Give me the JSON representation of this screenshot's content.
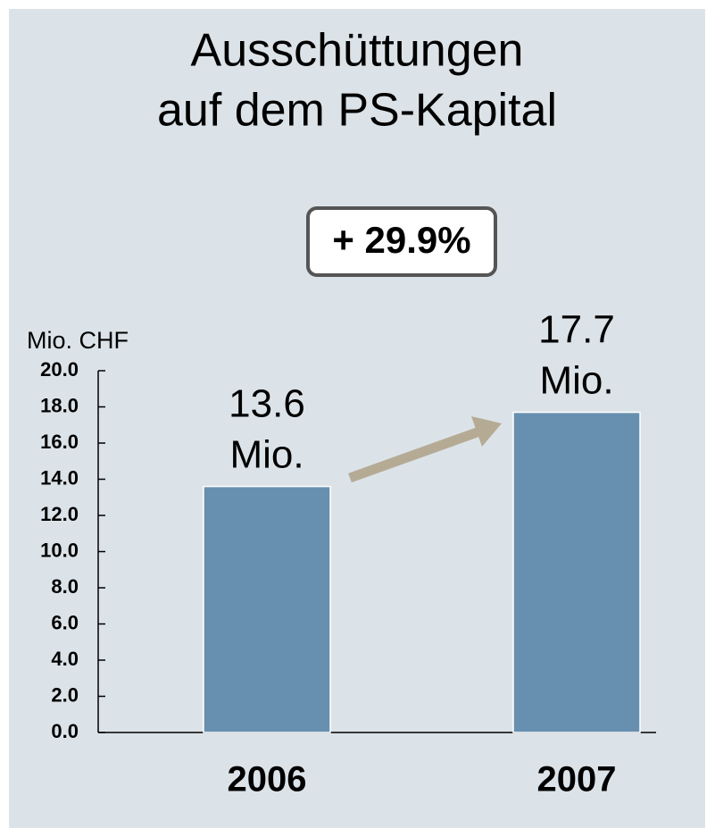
{
  "chart_data": {
    "type": "bar",
    "title": [
      "Ausschüttungen",
      "auf dem PS-Kapital"
    ],
    "annotation": "+ 29.9%",
    "y_label": "Mio. CHF",
    "categories": [
      "2006",
      "2007"
    ],
    "values": [
      13.6,
      17.7
    ],
    "value_labels": [
      "13.6 Mio.",
      "17.7 Mio."
    ],
    "color": "#678fb0",
    "ylim": [
      0,
      20
    ],
    "yticks": [
      {
        "value": 0,
        "label": "0.0"
      },
      {
        "value": 2,
        "label": "2.0"
      },
      {
        "value": 4,
        "label": "4.0"
      },
      {
        "value": 6,
        "label": "6.0"
      },
      {
        "value": 8,
        "label": "8.0"
      },
      {
        "value": 10,
        "label": "10.0"
      },
      {
        "value": 12,
        "label": "12.0"
      },
      {
        "value": 14,
        "label": "14.0"
      },
      {
        "value": 16,
        "label": "16.0"
      },
      {
        "value": 18,
        "label": "18.0"
      },
      {
        "value": 20,
        "label": "20.0"
      }
    ]
  }
}
